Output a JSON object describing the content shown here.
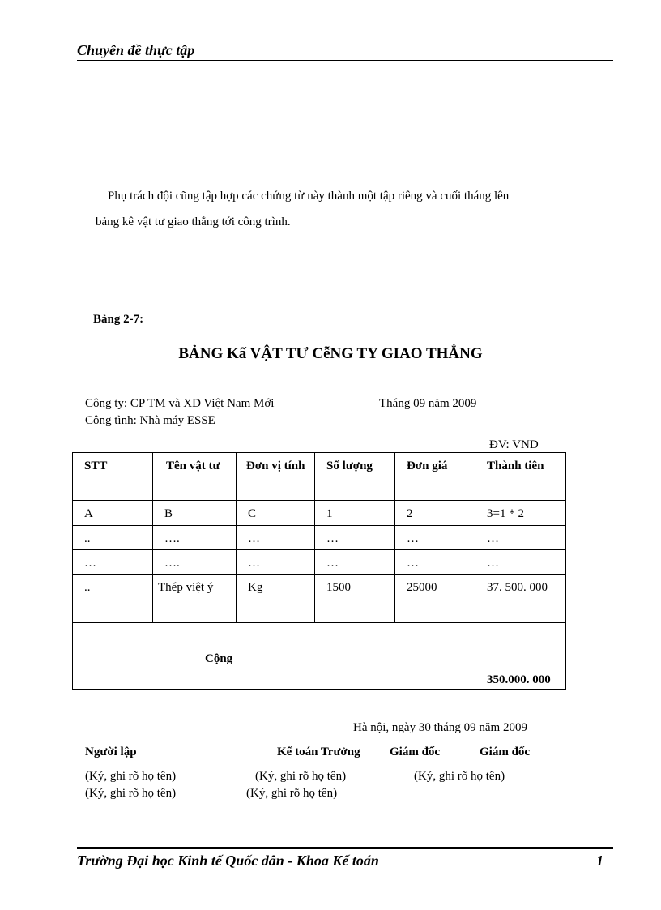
{
  "header": {
    "title": "Chuyên đề thực tập"
  },
  "paragraph": {
    "line1": "Phụ trách đội cũng tập hợp các chứng từ này thành một tập riêng và cuối tháng lên",
    "line2": "bảng kê vật tư giao thẳng tới công trình."
  },
  "table_label": "Bảng 2-7:",
  "table_title": "BẢNG Kấ VẬT TƯ CễNG TY GIAO THẲNG",
  "info": {
    "company": "Công ty: CP TM và XD Việt Nam Mới",
    "period": "Tháng 09 năm 2009",
    "site": "Công tình: Nhà máy ESSE",
    "unit": "ĐV: VND"
  },
  "table": {
    "headers": [
      "STT",
      "Tên vật tư",
      "Đơn vị tính",
      "Số lượng",
      "Đơn giá",
      "Thành tiên"
    ],
    "rows": [
      [
        "A",
        "B",
        "C",
        "1",
        "2",
        "3=1 * 2"
      ],
      [
        "..",
        "….",
        "…",
        "…",
        "…",
        "…"
      ],
      [
        "…",
        "….",
        "…",
        "…",
        "…",
        "…"
      ],
      [
        "..",
        "Thép việt ý",
        "Kg",
        "1500",
        "25000",
        "37. 500. 000"
      ]
    ],
    "total_label": "Cộng",
    "total_value": "350.000. 000"
  },
  "signature": {
    "date": "Hà nội, ngày 30 tháng 09 năm 2009",
    "roles": [
      "Người lập",
      "Kế toán Trưởng",
      "Giám đốc",
      "Giám đốc"
    ],
    "note": "(Ký, ghi rõ họ tên)"
  },
  "footer": {
    "text": "Trường Đại học Kinh tế Quốc dân - Khoa Kế toán",
    "page": "1"
  }
}
